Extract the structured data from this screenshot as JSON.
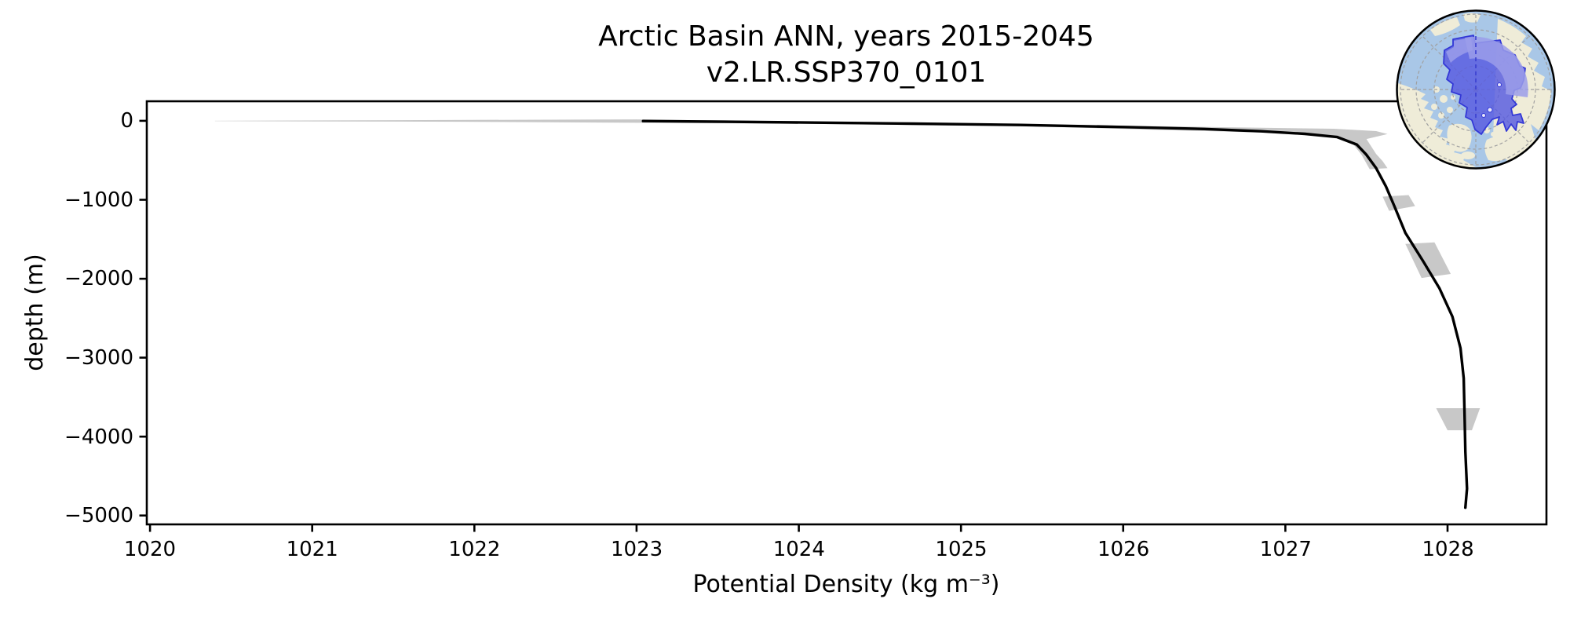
{
  "figure": {
    "background": "#ffffff"
  },
  "chart_data": {
    "type": "line",
    "title": "Arctic Basin ANN, years 2015-2045",
    "subtitle": "v2.LR.SSP370_0101",
    "xlabel": "Potential Density (kg m⁻³)",
    "ylabel": "depth (m)",
    "xlim": [
      1019.98,
      1028.61
    ],
    "ylim": [
      -5112,
      248
    ],
    "grid": false,
    "legend": "none",
    "xticks": [
      1020,
      1021,
      1022,
      1023,
      1024,
      1025,
      1026,
      1027,
      1028
    ],
    "xtick_labels": [
      "1020",
      "1021",
      "1022",
      "1023",
      "1024",
      "1025",
      "1026",
      "1027",
      "1028"
    ],
    "yticks": [
      0,
      -1000,
      -2000,
      -3000,
      -4000,
      -5000
    ],
    "ytick_labels": [
      "0",
      "−1000",
      "−2000",
      "−3000",
      "−4000",
      "−5000"
    ],
    "axis_color": "#000000",
    "series": [
      {
        "name": "mean potential density profile",
        "color": "#000000",
        "linewidth": 3.4,
        "points": [
          [
            1023.04,
            -3
          ],
          [
            1023.55,
            -12
          ],
          [
            1024.1,
            -22
          ],
          [
            1024.7,
            -35
          ],
          [
            1025.37,
            -52
          ],
          [
            1026.0,
            -78
          ],
          [
            1026.5,
            -103
          ],
          [
            1026.85,
            -132
          ],
          [
            1027.12,
            -165
          ],
          [
            1027.32,
            -205
          ],
          [
            1027.44,
            -300
          ],
          [
            1027.5,
            -430
          ],
          [
            1027.56,
            -600
          ],
          [
            1027.62,
            -830
          ],
          [
            1027.67,
            -1070
          ],
          [
            1027.74,
            -1420
          ],
          [
            1027.85,
            -1780
          ],
          [
            1027.95,
            -2120
          ],
          [
            1028.03,
            -2480
          ],
          [
            1028.08,
            -2880
          ],
          [
            1028.1,
            -3260
          ],
          [
            1028.105,
            -3730
          ],
          [
            1028.11,
            -4190
          ],
          [
            1028.12,
            -4660
          ],
          [
            1028.11,
            -4900
          ]
        ]
      }
    ],
    "band": {
      "name": "ensemble spread (shaded uncertainty band)",
      "color": "#c8c8c8",
      "polygons": [
        [
          [
            1020.4,
            0
          ],
          [
            1023.0,
            18
          ],
          [
            1025.4,
            -42
          ],
          [
            1026.6,
            -80
          ],
          [
            1027.3,
            -100
          ],
          [
            1027.56,
            -130
          ],
          [
            1027.63,
            -168
          ],
          [
            1027.5,
            -230
          ],
          [
            1027.56,
            -420
          ],
          [
            1027.6,
            -510
          ],
          [
            1027.63,
            -600
          ],
          [
            1027.52,
            -612
          ],
          [
            1027.47,
            -430
          ],
          [
            1027.42,
            -300
          ],
          [
            1027.33,
            -230
          ],
          [
            1027.28,
            -195
          ],
          [
            1027.02,
            -158
          ],
          [
            1026.6,
            -135
          ],
          [
            1025.4,
            -68
          ],
          [
            1023.9,
            -34
          ],
          [
            1021.9,
            -12
          ],
          [
            1020.4,
            -4
          ]
        ],
        [
          [
            1027.6,
            -960
          ],
          [
            1027.76,
            -940
          ],
          [
            1027.8,
            -1080
          ],
          [
            1027.64,
            -1140
          ]
        ],
        [
          [
            1027.74,
            -1560
          ],
          [
            1027.92,
            -1540
          ],
          [
            1028.02,
            -1940
          ],
          [
            1027.84,
            -1990
          ]
        ],
        [
          [
            1027.93,
            -3640
          ],
          [
            1028.2,
            -3640
          ],
          [
            1028.15,
            -3920
          ],
          [
            1028.0,
            -3920
          ]
        ]
      ]
    },
    "inset_map": {
      "name": "Arctic Basin region inset (north polar stereographic)",
      "ocean_color": "#a9c7e7",
      "land_color": "#efecd8",
      "region_fill": "#575ae0",
      "region_fill_light": "#9b9dea",
      "region_outline": "#3338d6",
      "graticule_color": "#a0a0a0",
      "border_color": "#000000"
    }
  }
}
